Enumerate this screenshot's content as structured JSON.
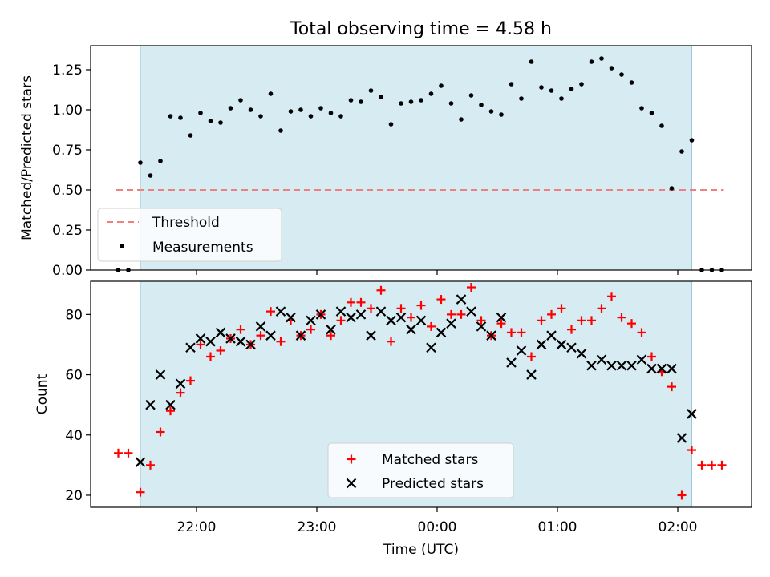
{
  "figure_title": "Total observing time = 4.58 h",
  "chart_data": [
    {
      "type": "scatter",
      "panel": "top",
      "title": "Total observing time = 4.58 h",
      "xlabel": "",
      "ylabel": "Matched/Predicted stars",
      "ylim": [
        0,
        1.4
      ],
      "yticks": [
        "0.00",
        "0.25",
        "0.50",
        "0.75",
        "1.00",
        "1.25"
      ],
      "ytick_values": [
        0,
        0.25,
        0.5,
        0.75,
        1.0,
        1.25
      ],
      "shaded_interval": [
        "21:32",
        "02:07"
      ],
      "threshold": {
        "name": "Threshold",
        "value": 0.5,
        "x_range": [
          "21:20",
          "02:23"
        ],
        "color": "#f08080"
      },
      "legend_position": "lower-left",
      "series": [
        {
          "name": "Measurements",
          "marker": "dot",
          "color": "#000000",
          "x": [
            "21:21",
            "21:26",
            "21:32",
            "21:37",
            "21:42",
            "21:47",
            "21:52",
            "21:57",
            "22:02",
            "22:07",
            "22:12",
            "22:17",
            "22:22",
            "22:27",
            "22:32",
            "22:37",
            "22:42",
            "22:47",
            "22:52",
            "22:57",
            "23:02",
            "23:07",
            "23:12",
            "23:17",
            "23:22",
            "23:27",
            "23:32",
            "23:37",
            "23:42",
            "23:47",
            "23:52",
            "23:57",
            "00:02",
            "00:07",
            "00:12",
            "00:17",
            "00:22",
            "00:27",
            "00:32",
            "00:37",
            "00:42",
            "00:47",
            "00:52",
            "00:57",
            "01:02",
            "01:07",
            "01:12",
            "01:17",
            "01:22",
            "01:27",
            "01:32",
            "01:37",
            "01:42",
            "01:47",
            "01:52",
            "01:57",
            "02:02",
            "02:07",
            "02:12",
            "02:17",
            "02:22"
          ],
          "y": [
            0.0,
            0.0,
            0.67,
            0.59,
            0.68,
            0.96,
            0.95,
            0.84,
            0.98,
            0.93,
            0.92,
            1.01,
            1.06,
            1.0,
            0.96,
            1.1,
            0.87,
            0.99,
            1.0,
            0.96,
            1.01,
            0.98,
            0.96,
            1.06,
            1.05,
            1.12,
            1.08,
            0.91,
            1.04,
            1.05,
            1.06,
            1.1,
            1.15,
            1.04,
            0.94,
            1.09,
            1.03,
            0.99,
            0.97,
            1.16,
            1.07,
            1.3,
            1.14,
            1.12,
            1.07,
            1.13,
            1.16,
            1.3,
            1.32,
            1.26,
            1.22,
            1.17,
            1.01,
            0.98,
            0.9,
            0.51,
            0.74,
            0.81,
            0.0,
            0.0,
            0.0
          ]
        }
      ]
    },
    {
      "type": "scatter",
      "panel": "bottom",
      "xlabel": "Time (UTC)",
      "ylabel": "Count",
      "ylim": [
        16,
        91
      ],
      "yticks": [
        "20",
        "40",
        "60",
        "80"
      ],
      "ytick_values": [
        20,
        40,
        60,
        80
      ],
      "xticks": [
        "22:00",
        "23:00",
        "00:00",
        "01:00",
        "02:00"
      ],
      "xtick_positions": [
        "22:00",
        "23:00",
        "00:00",
        "01:00",
        "02:00"
      ],
      "shaded_interval": [
        "21:32",
        "02:07"
      ],
      "legend_position": "lower-center",
      "series": [
        {
          "name": "Matched stars",
          "marker": "plus",
          "color": "#ff0000",
          "x": [
            "21:21",
            "21:26",
            "21:32",
            "21:37",
            "21:42",
            "21:47",
            "21:52",
            "21:57",
            "22:02",
            "22:07",
            "22:12",
            "22:17",
            "22:22",
            "22:27",
            "22:32",
            "22:37",
            "22:42",
            "22:47",
            "22:52",
            "22:57",
            "23:02",
            "23:07",
            "23:12",
            "23:17",
            "23:22",
            "23:27",
            "23:32",
            "23:37",
            "23:42",
            "23:47",
            "23:52",
            "23:57",
            "00:02",
            "00:07",
            "00:12",
            "00:17",
            "00:22",
            "00:27",
            "00:32",
            "00:37",
            "00:42",
            "00:47",
            "00:52",
            "00:57",
            "01:02",
            "01:07",
            "01:12",
            "01:17",
            "01:22",
            "01:27",
            "01:32",
            "01:37",
            "01:42",
            "01:47",
            "01:52",
            "01:57",
            "02:02",
            "02:07",
            "02:12",
            "02:17",
            "02:22"
          ],
          "y": [
            34,
            34,
            21,
            30,
            41,
            48,
            54,
            58,
            70,
            66,
            68,
            72,
            75,
            70,
            73,
            81,
            71,
            78,
            73,
            75,
            80,
            73,
            78,
            84,
            84,
            82,
            88,
            71,
            82,
            79,
            83,
            76,
            85,
            80,
            80,
            89,
            78,
            73,
            77,
            74,
            74,
            66,
            78,
            80,
            82,
            75,
            78,
            78,
            82,
            86,
            79,
            77,
            74,
            66,
            61,
            56,
            20,
            35,
            30,
            30,
            30
          ]
        },
        {
          "name": "Predicted stars",
          "marker": "x",
          "color": "#000000",
          "x": [
            "21:32",
            "21:37",
            "21:42",
            "21:47",
            "21:52",
            "21:57",
            "22:02",
            "22:07",
            "22:12",
            "22:17",
            "22:22",
            "22:27",
            "22:32",
            "22:37",
            "22:42",
            "22:47",
            "22:52",
            "22:57",
            "23:02",
            "23:07",
            "23:12",
            "23:17",
            "23:22",
            "23:27",
            "23:32",
            "23:37",
            "23:42",
            "23:47",
            "23:52",
            "23:57",
            "00:02",
            "00:07",
            "00:12",
            "00:17",
            "00:22",
            "00:27",
            "00:32",
            "00:37",
            "00:42",
            "00:47",
            "00:52",
            "00:57",
            "01:02",
            "01:07",
            "01:12",
            "01:17",
            "01:22",
            "01:27",
            "01:32",
            "01:37",
            "01:42",
            "01:47",
            "01:52",
            "01:57",
            "02:02",
            "02:07"
          ],
          "y": [
            31,
            50,
            60,
            50,
            57,
            69,
            72,
            71,
            74,
            72,
            71,
            70,
            76,
            73,
            81,
            79,
            73,
            78,
            80,
            75,
            81,
            79,
            80,
            73,
            81,
            78,
            79,
            75,
            78,
            69,
            74,
            77,
            85,
            81,
            76,
            73,
            79,
            64,
            68,
            60,
            70,
            73,
            70,
            69,
            67,
            63,
            65,
            63,
            63,
            63,
            65,
            62,
            62,
            62,
            39,
            47
          ]
        }
      ]
    }
  ]
}
